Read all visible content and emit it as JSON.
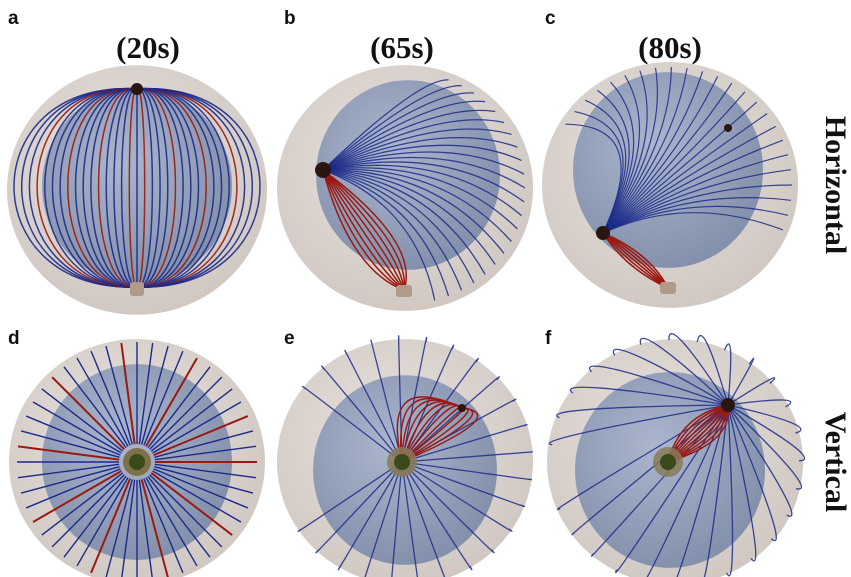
{
  "time_labels": [
    "(20s)",
    "(65s)",
    "(80s)"
  ],
  "row_labels": [
    "Horizontal",
    "Vertical"
  ],
  "panels": [
    {
      "letter": "a",
      "row": "Horizontal",
      "time": "(20s)"
    },
    {
      "letter": "b",
      "row": "Horizontal",
      "time": "(65s)"
    },
    {
      "letter": "c",
      "row": "Horizontal",
      "time": "(80s)"
    },
    {
      "letter": "d",
      "row": "Vertical",
      "time": "(20s)"
    },
    {
      "letter": "e",
      "row": "Vertical",
      "time": "(65s)"
    },
    {
      "letter": "f",
      "row": "Vertical",
      "time": "(80s)"
    }
  ],
  "colors": {
    "outer_sphere": "#ddd6d2",
    "inner_sphere": "#8c9cb8",
    "blue_lines": "#1c2a8a",
    "red_lines": "#9a1a12",
    "electrode": "#2a1510",
    "background": "#ffffff"
  }
}
